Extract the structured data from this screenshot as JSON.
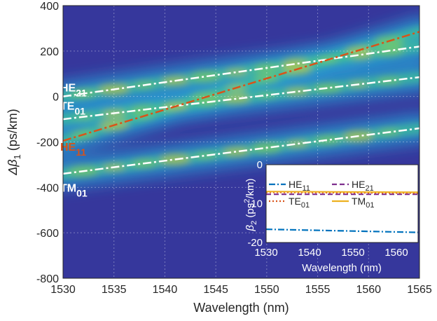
{
  "chart_data": [
    {
      "type": "heatmap",
      "xlabel_text": "Wavelength (nm)",
      "ylabel_prefix": "Δβ",
      "ylabel_sub": "1",
      "ylabel_suffix": " (ps/km)",
      "xlim": [
        1530,
        1565
      ],
      "ylim": [
        -800,
        400
      ],
      "xticks": [
        "1530",
        "1535",
        "1540",
        "1545",
        "1550",
        "1555",
        "1560",
        "1565"
      ],
      "yticks": [
        "400",
        "200",
        "0",
        "-200",
        "-400",
        "-600",
        "-800"
      ],
      "grid": true,
      "colormap": "parula",
      "modes": [
        {
          "base": "HE",
          "sub": "21",
          "color": "#ffffff",
          "label_y": 40,
          "line": {
            "x": [
              1530,
              1565
            ],
            "y": [
              0,
              220
            ]
          }
        },
        {
          "base": "TE",
          "sub": "01",
          "color": "#ffffff",
          "label_y": -40,
          "line": {
            "x": [
              1530,
              1565
            ],
            "y": [
              -100,
              85
            ]
          }
        },
        {
          "base": "HE",
          "sub": "11",
          "color": "#d95319",
          "label_y": -220,
          "line": {
            "x": [
              1530,
              1565
            ],
            "y": [
              -195,
              285
            ]
          }
        },
        {
          "base": "TM",
          "sub": "01",
          "color": "#ffffff",
          "label_y": -400,
          "line": {
            "x": [
              1530,
              1565
            ],
            "y": [
              -340,
              -140
            ]
          }
        }
      ]
    },
    {
      "type": "line",
      "xlabel_text": "Wavelength (nm)",
      "xlim": [
        1530,
        1565
      ],
      "ylim": [
        -20,
        0
      ],
      "xticks": [
        "1530",
        "1540",
        "1550",
        "1560"
      ],
      "yticks": [
        "0",
        "-10",
        "-20"
      ],
      "ylabel": {
        "beta": "β",
        "sub": "2",
        "open": " (ps",
        "sup": "2",
        "close": "/km)"
      },
      "series": [
        {
          "base": "HE",
          "sub": "11",
          "x": [
            1530,
            1565
          ],
          "y": [
            -16.6,
            -17.4
          ],
          "color": "#0072bd",
          "dash": "9,3,2,3"
        },
        {
          "base": "HE",
          "sub": "21",
          "x": [
            1530,
            1565
          ],
          "y": [
            -7.6,
            -7.6
          ],
          "color": "#7e2f8e",
          "dash": "7,4"
        },
        {
          "base": "TE",
          "sub": "01",
          "x": [
            1530,
            1565
          ],
          "y": [
            -7.1,
            -7.3
          ],
          "color": "#d95319",
          "dash": "2,3"
        },
        {
          "base": "TM",
          "sub": "01",
          "x": [
            1530,
            1565
          ],
          "y": [
            -6.9,
            -7.1
          ],
          "color": "#edb120",
          "dash": ""
        }
      ]
    }
  ]
}
